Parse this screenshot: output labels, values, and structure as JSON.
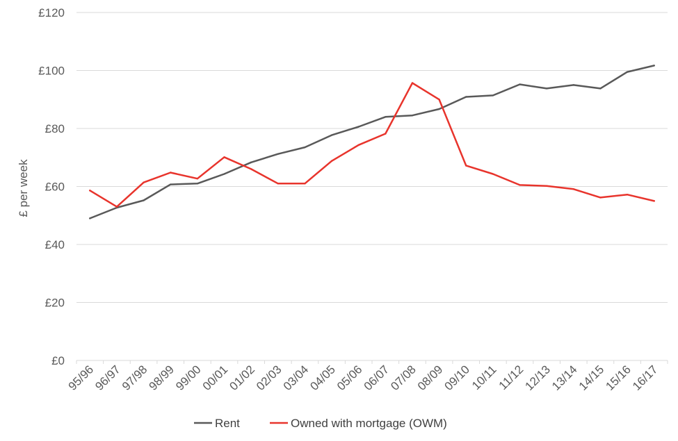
{
  "chart_data": {
    "type": "line",
    "title": "",
    "xlabel": "",
    "ylabel": "£ per week",
    "ylim": [
      0,
      120
    ],
    "yticks": [
      0,
      20,
      40,
      60,
      80,
      100,
      120
    ],
    "ytick_prefix": "£",
    "grid": "horizontal",
    "legend_position": "bottom",
    "categories": [
      "95/96",
      "96/97",
      "97/98",
      "98/99",
      "99/00",
      "00/01",
      "01/02",
      "02/03",
      "03/04",
      "04/05",
      "05/06",
      "06/07",
      "07/08",
      "08/09",
      "09/10",
      "10/11",
      "11/12",
      "12/13",
      "13/14",
      "14/15",
      "15/16",
      "16/17"
    ],
    "series": [
      {
        "name": "Rent",
        "color": "#595959",
        "values": [
          49,
          52.7,
          55.2,
          60.7,
          61,
          64.3,
          68.3,
          71.2,
          73.5,
          77.7,
          80.6,
          84,
          84.5,
          86.7,
          90.9,
          91.4,
          95.2,
          93.8,
          95,
          93.8,
          99.5,
          101.7
        ]
      },
      {
        "name": "Owned with mortgage (OWM)",
        "color": "#e8342c",
        "values": [
          58.6,
          53,
          61.4,
          64.8,
          62.7,
          70.1,
          66,
          61,
          61,
          68.8,
          74.3,
          78.2,
          95.7,
          90,
          67.2,
          64.3,
          60.5,
          60.2,
          59.1,
          56.2,
          57.2,
          55
        ]
      }
    ]
  }
}
